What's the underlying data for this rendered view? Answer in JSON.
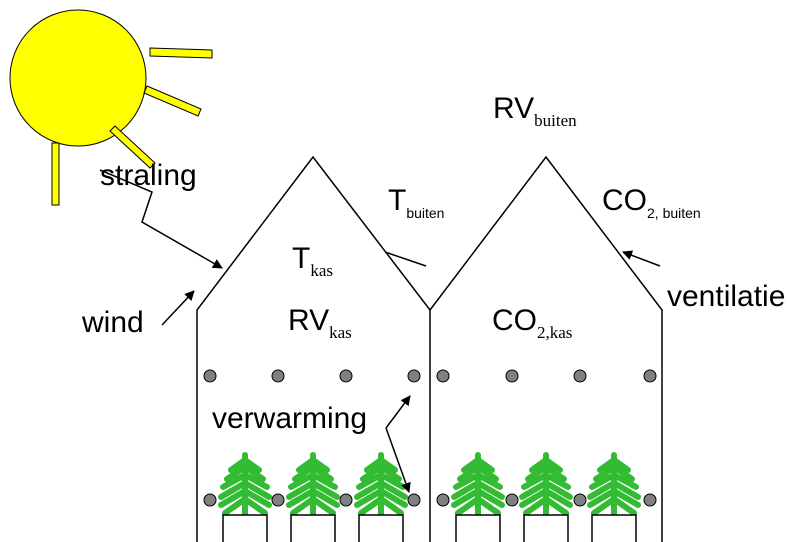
{
  "labels": {
    "straling": "straling",
    "wind": "wind",
    "verwarming": "verwarming",
    "ventilatie": "ventilatie"
  },
  "quantities": [
    {
      "symbol": "RV",
      "sub": "buiten"
    },
    {
      "symbol": "T",
      "sub": "buiten"
    },
    {
      "symbol": "CO",
      "sub": "2, buiten"
    },
    {
      "symbol": "T",
      "sub": "kas"
    },
    {
      "symbol": "RV",
      "sub": "kas"
    },
    {
      "symbol": "CO",
      "sub": "2,kas"
    }
  ]
}
